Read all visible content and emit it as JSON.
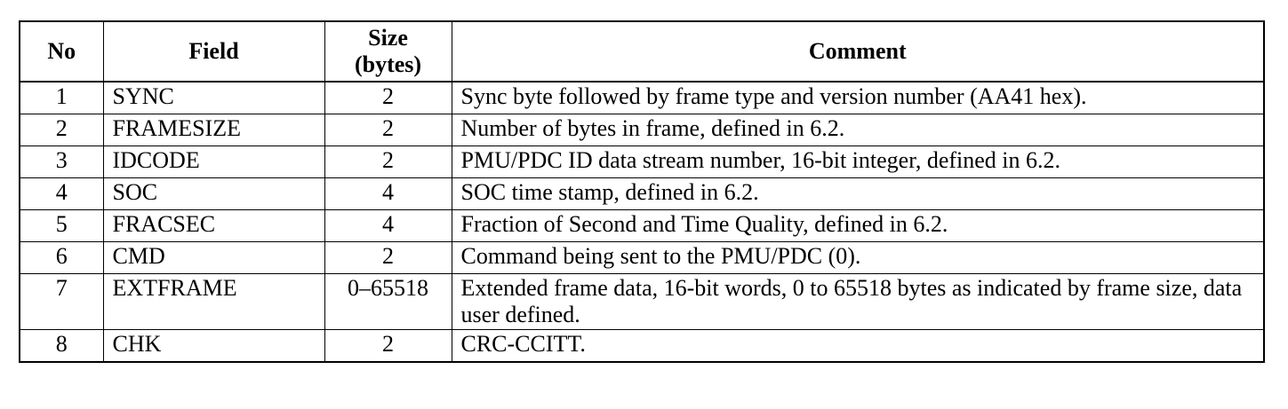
{
  "table": {
    "headers": {
      "no": "No",
      "field": "Field",
      "size_line1": "Size",
      "size_line2": "(bytes)",
      "comment": "Comment"
    },
    "rows": [
      {
        "no": "1",
        "field": "SYNC",
        "size": "2",
        "comment": "Sync byte followed by frame type and version number (AA41 hex)."
      },
      {
        "no": "2",
        "field": "FRAMESIZE",
        "size": "2",
        "comment": "Number of bytes in frame, defined in 6.2."
      },
      {
        "no": "3",
        "field": "IDCODE",
        "size": "2",
        "comment": "PMU/PDC ID data stream number, 16-bit integer, defined in 6.2."
      },
      {
        "no": "4",
        "field": "SOC",
        "size": "4",
        "comment": "SOC time stamp, defined in 6.2."
      },
      {
        "no": "5",
        "field": "FRACSEC",
        "size": "4",
        "comment": "Fraction of Second and Time Quality, defined in 6.2."
      },
      {
        "no": "6",
        "field": "CMD",
        "size": "2",
        "comment": "Command being sent to the PMU/PDC (0)."
      },
      {
        "no": "7",
        "field": "EXTFRAME",
        "size": "0–65518",
        "comment": "Extended frame data, 16-bit words, 0 to 65518 bytes as indicated by frame size, data user defined."
      },
      {
        "no": "8",
        "field": "CHK",
        "size": "2",
        "comment": "CRC-CCITT."
      }
    ]
  }
}
